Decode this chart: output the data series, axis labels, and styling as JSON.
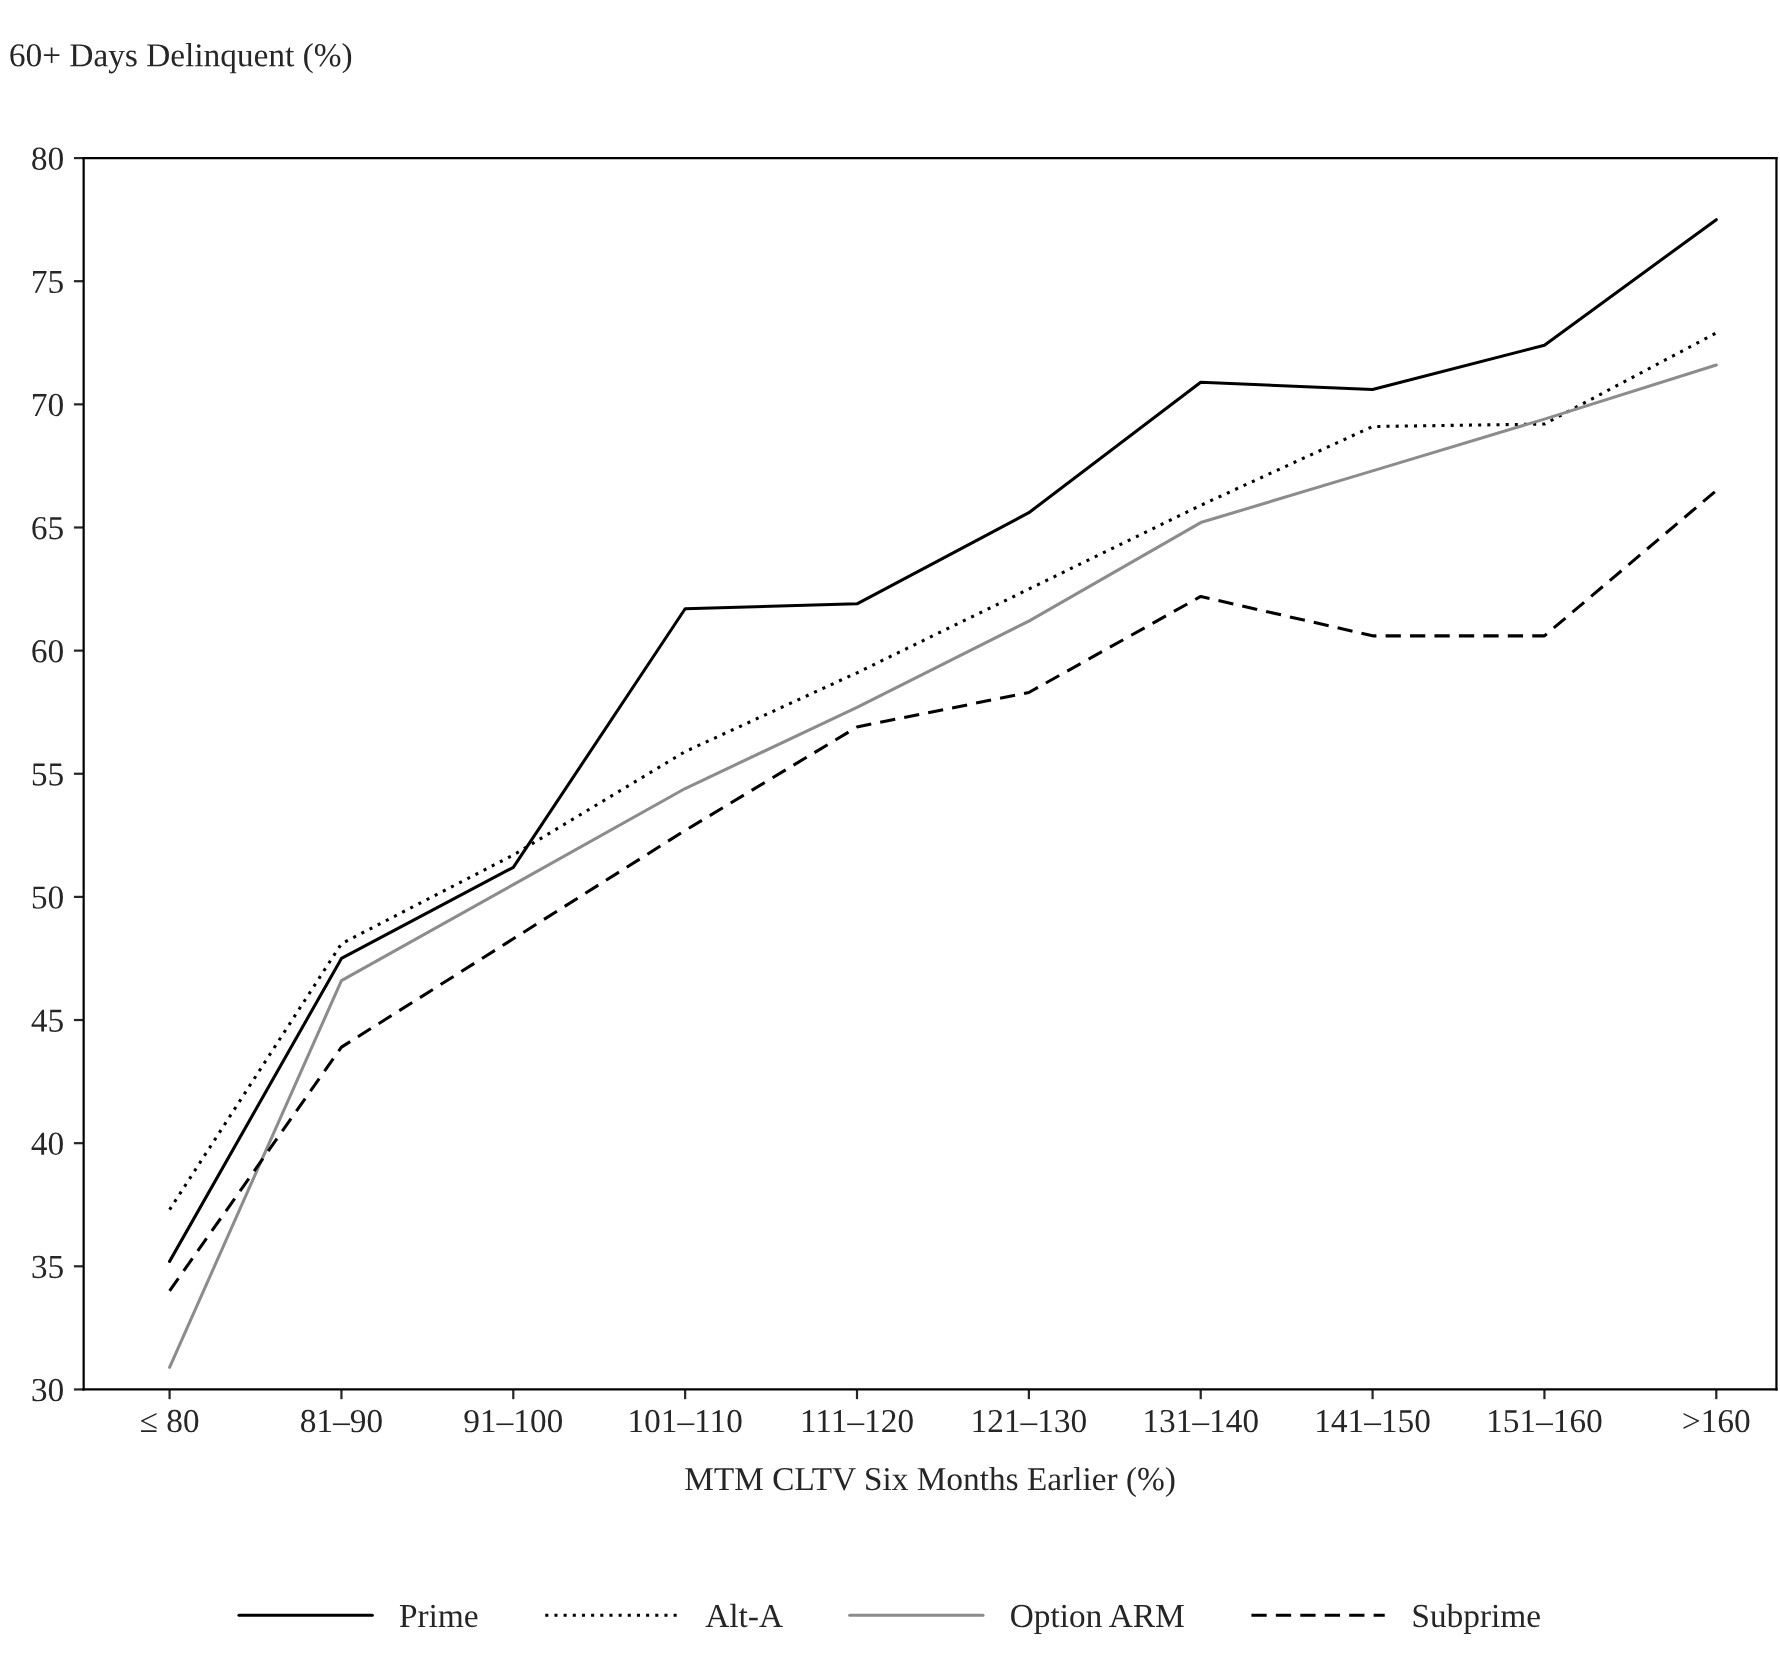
{
  "chart_data": {
    "type": "line",
    "ylabel": "60+ Days Delinquent (%)",
    "xlabel": "MTM CLTV Six Months Earlier (%)",
    "categories": [
      "≤ 80",
      "81–90",
      "91–100",
      "101–110",
      "111–120",
      "121–130",
      "131–140",
      "141–150",
      "151–160",
      ">160"
    ],
    "series": [
      {
        "name": "Prime",
        "color": "#000000",
        "line_style": "solid",
        "values": [
          35.2,
          47.5,
          51.2,
          61.7,
          61.9,
          65.6,
          70.9,
          70.6,
          72.4,
          77.5
        ]
      },
      {
        "name": "Alt-A",
        "color": "#000000",
        "line_style": "dotted",
        "values": [
          37.3,
          48.1,
          51.7,
          55.9,
          59.1,
          62.5,
          65.9,
          69.1,
          69.2,
          72.9
        ]
      },
      {
        "name": "Option ARM",
        "color": "#8c8c8c",
        "line_style": "solid",
        "values": [
          30.9,
          46.6,
          50.5,
          54.4,
          57.7,
          61.2,
          65.2,
          67.3,
          69.4,
          71.6
        ]
      },
      {
        "name": "Subprime",
        "color": "#000000",
        "line_style": "dashed",
        "values": [
          34.0,
          43.9,
          48.3,
          52.7,
          56.9,
          58.3,
          62.2,
          60.6,
          60.6,
          66.5
        ]
      }
    ],
    "ylim": [
      30,
      80
    ],
    "yticks": [
      30,
      35,
      40,
      45,
      50,
      55,
      60,
      65,
      70,
      75,
      80
    ],
    "grid": false,
    "legend": "bottom",
    "marker": "none"
  }
}
